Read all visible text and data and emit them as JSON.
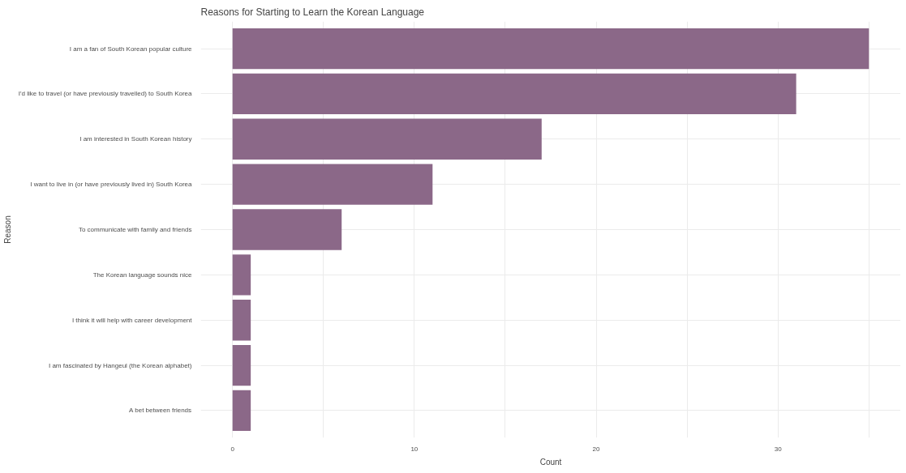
{
  "chart_data": {
    "type": "bar",
    "orientation": "horizontal",
    "title": "Reasons for Starting to Learn the Korean Language",
    "xlabel": "Count",
    "ylabel": "Reason",
    "categories": [
      "I am a fan of South Korean popular culture",
      "I'd like to travel (or have previously travelled) to South Korea",
      "I am interested in South Korean history",
      "I want to live in (or have previously lived in) South Korea",
      "To communicate with family and friends",
      "The Korean language sounds nice",
      "I think it will help with career development",
      "I am fascinated by Hangeul (the Korean alphabet)",
      "A bet between friends"
    ],
    "values": [
      35,
      31,
      17,
      11,
      6,
      1,
      1,
      1,
      1
    ],
    "color": "#8b6888",
    "xlim": [
      -1.75,
      36.75
    ],
    "xticks": [
      0,
      {
        "value": 5,
        "label": null
      },
      10,
      {
        "value": 15,
        "label": null
      },
      20,
      {
        "value": 25,
        "label": null
      },
      30,
      {
        "value": 35,
        "label": null
      }
    ],
    "grid": true
  }
}
